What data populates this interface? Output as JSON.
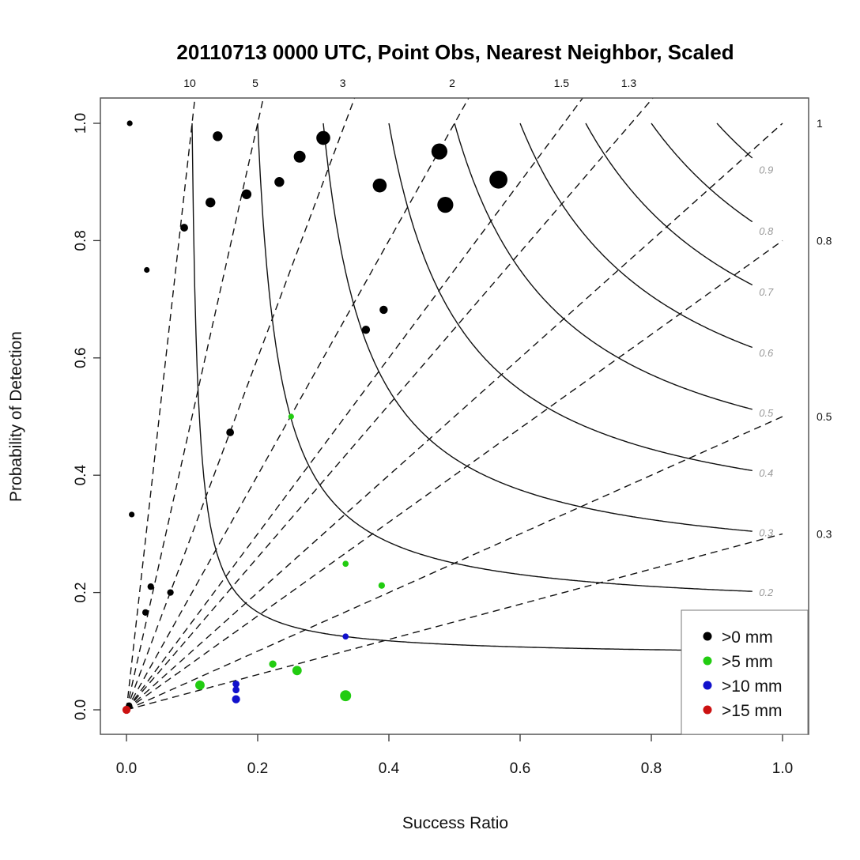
{
  "chart_data": {
    "type": "scatter",
    "subtype": "performance-diagram",
    "title": "20110713 0000 UTC, Point Obs, Nearest Neighbor, Scaled",
    "xlabel": "Success Ratio",
    "ylabel": "Probability of Detection",
    "xlim": [
      0,
      1
    ],
    "ylim": [
      0,
      1
    ],
    "xticks": [
      "0.0",
      "0.2",
      "0.4",
      "0.6",
      "0.8",
      "1.0"
    ],
    "yticks": [
      "0.0",
      "0.2",
      "0.4",
      "0.6",
      "0.8",
      "1.0"
    ],
    "bias_lines": [
      {
        "value": 10,
        "label": "10",
        "position": "top"
      },
      {
        "value": 5,
        "label": "5",
        "position": "top"
      },
      {
        "value": 3,
        "label": "3",
        "position": "top"
      },
      {
        "value": 2,
        "label": "2",
        "position": "top"
      },
      {
        "value": 1.5,
        "label": "1.5",
        "position": "top"
      },
      {
        "value": 1.3,
        "label": "1.3",
        "position": "top"
      },
      {
        "value": 1,
        "label": "1",
        "position": "right"
      },
      {
        "value": 0.8,
        "label": "0.8",
        "position": "right"
      },
      {
        "value": 0.5,
        "label": "0.5",
        "position": "right"
      },
      {
        "value": 0.3,
        "label": "0.3",
        "position": "right"
      }
    ],
    "csi_contours": [
      {
        "value": 0.1,
        "label": ""
      },
      {
        "value": 0.2,
        "label": "0.2"
      },
      {
        "value": 0.3,
        "label": "0.3"
      },
      {
        "value": 0.4,
        "label": "0.4"
      },
      {
        "value": 0.5,
        "label": "0.5"
      },
      {
        "value": 0.6,
        "label": "0.6"
      },
      {
        "value": 0.7,
        "label": "0.7"
      },
      {
        "value": 0.8,
        "label": "0.8"
      },
      {
        "value": 0.9,
        "label": "0.9"
      }
    ],
    "legend_position": "bottom-right",
    "series": [
      {
        "name": ">0 mm",
        "color": "#000000",
        "points": [
          {
            "x": 0.005,
            "y": 1.0,
            "size": 1
          },
          {
            "x": 0.139,
            "y": 0.978,
            "size": 2
          },
          {
            "x": 0.3,
            "y": 0.975,
            "size": 3
          },
          {
            "x": 0.264,
            "y": 0.943,
            "size": 2.5
          },
          {
            "x": 0.477,
            "y": 0.952,
            "size": 3.5
          },
          {
            "x": 0.567,
            "y": 0.904,
            "size": 4
          },
          {
            "x": 0.386,
            "y": 0.894,
            "size": 3
          },
          {
            "x": 0.486,
            "y": 0.861,
            "size": 3.5
          },
          {
            "x": 0.233,
            "y": 0.9,
            "size": 2
          },
          {
            "x": 0.183,
            "y": 0.879,
            "size": 2
          },
          {
            "x": 0.128,
            "y": 0.865,
            "size": 2
          },
          {
            "x": 0.088,
            "y": 0.822,
            "size": 1.5
          },
          {
            "x": 0.031,
            "y": 0.75,
            "size": 1
          },
          {
            "x": 0.392,
            "y": 0.682,
            "size": 1.6
          },
          {
            "x": 0.365,
            "y": 0.648,
            "size": 1.6
          },
          {
            "x": 0.158,
            "y": 0.473,
            "size": 1.5
          },
          {
            "x": 0.008,
            "y": 0.333,
            "size": 1
          },
          {
            "x": 0.037,
            "y": 0.21,
            "size": 1.2
          },
          {
            "x": 0.067,
            "y": 0.2,
            "size": 1.2
          },
          {
            "x": 0.029,
            "y": 0.166,
            "size": 1.2
          },
          {
            "x": 0.004,
            "y": 0.007,
            "size": 1.2
          }
        ]
      },
      {
        "name": ">5 mm",
        "color": "#22cc11",
        "points": [
          {
            "x": 0.251,
            "y": 0.5,
            "size": 1
          },
          {
            "x": 0.334,
            "y": 0.249,
            "size": 1.1
          },
          {
            "x": 0.389,
            "y": 0.212,
            "size": 1.2
          },
          {
            "x": 0.223,
            "y": 0.078,
            "size": 1.4
          },
          {
            "x": 0.26,
            "y": 0.067,
            "size": 1.9
          },
          {
            "x": 0.112,
            "y": 0.042,
            "size": 1.9
          },
          {
            "x": 0.334,
            "y": 0.024,
            "size": 2.3
          }
        ]
      },
      {
        "name": ">10 mm",
        "color": "#1111cc",
        "points": [
          {
            "x": 0.334,
            "y": 0.125,
            "size": 1.1
          },
          {
            "x": 0.167,
            "y": 0.044,
            "size": 1.3
          },
          {
            "x": 0.167,
            "y": 0.034,
            "size": 1.3
          },
          {
            "x": 0.167,
            "y": 0.018,
            "size": 1.6
          }
        ]
      },
      {
        "name": ">15 mm",
        "color": "#cc1111",
        "points": [
          {
            "x": 0.0,
            "y": 0.0,
            "size": 1.6
          }
        ]
      }
    ]
  }
}
